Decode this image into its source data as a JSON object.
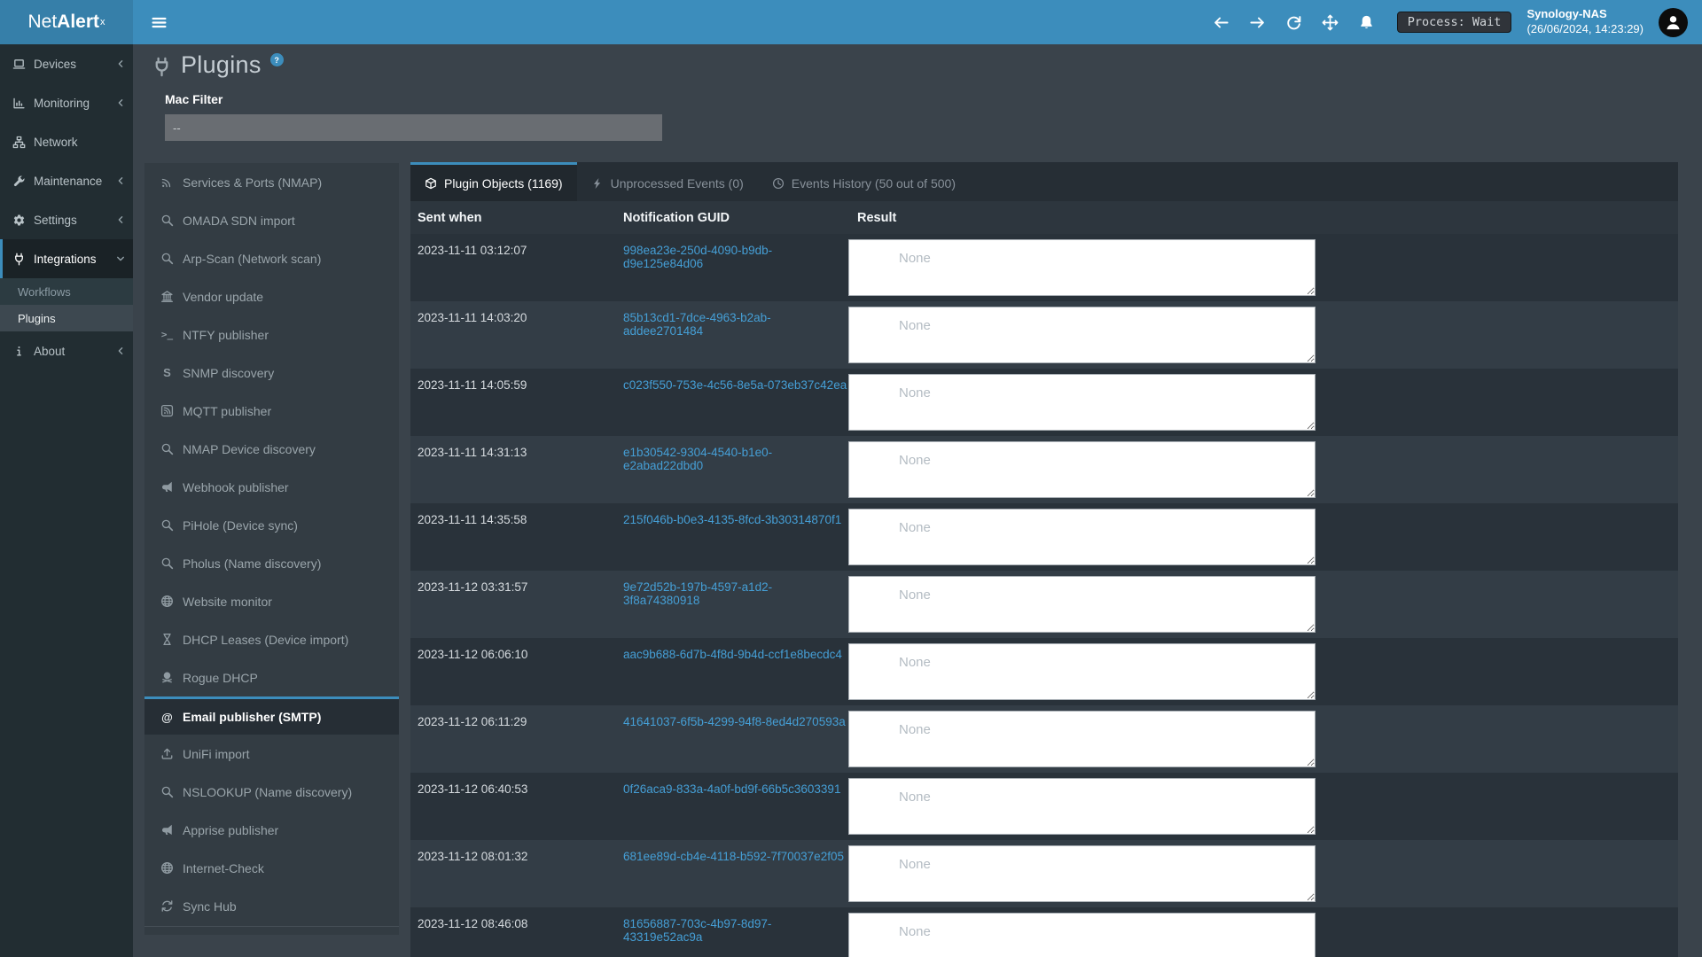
{
  "navbar": {
    "brand": {
      "prefix": "Net",
      "bold": "Alert",
      "sup": "x"
    },
    "nav_icons": [
      {
        "name": "back-icon"
      },
      {
        "name": "forward-icon"
      },
      {
        "name": "refresh-icon"
      },
      {
        "name": "move-icon"
      },
      {
        "name": "bell-icon"
      }
    ],
    "process_badge": "Process: Wait",
    "host": "Synology-NAS",
    "timestamp": "(26/06/2024, 14:23:29)"
  },
  "sidebar": {
    "items": [
      {
        "label": "Devices",
        "icon": "laptop-icon",
        "chevron": "left"
      },
      {
        "label": "Monitoring",
        "icon": "chart-icon",
        "chevron": "left"
      },
      {
        "label": "Network",
        "icon": "network-icon",
        "chevron": ""
      },
      {
        "label": "Maintenance",
        "icon": "wrench-icon",
        "chevron": "left"
      },
      {
        "label": "Settings",
        "icon": "gear-icon",
        "chevron": "left"
      },
      {
        "label": "Integrations",
        "icon": "plug-icon",
        "chevron": "down",
        "active": true,
        "children": [
          {
            "label": "Workflows",
            "selected": false
          },
          {
            "label": "Plugins",
            "selected": true
          }
        ]
      },
      {
        "label": "About",
        "icon": "info-icon",
        "chevron": "left"
      }
    ]
  },
  "page": {
    "title": "Plugins",
    "help": "?"
  },
  "filter": {
    "label": "Mac Filter",
    "value": "--"
  },
  "plugin_list": {
    "items": [
      {
        "label": "Services & Ports (NMAP)",
        "icon": "satellite-icon"
      },
      {
        "label": "OMADA SDN import",
        "icon": "search-icon"
      },
      {
        "label": "Arp-Scan (Network scan)",
        "icon": "search-icon"
      },
      {
        "label": "Vendor update",
        "icon": "landmark-icon"
      },
      {
        "label": "NTFY publisher",
        "icon": "terminal-icon"
      },
      {
        "label": "SNMP discovery",
        "icon": "snmp-icon"
      },
      {
        "label": "MQTT publisher",
        "icon": "rss-icon"
      },
      {
        "label": "NMAP Device discovery",
        "icon": "search-icon"
      },
      {
        "label": "Webhook publisher",
        "icon": "megaphone-icon"
      },
      {
        "label": "PiHole (Device sync)",
        "icon": "search-icon"
      },
      {
        "label": "Pholus (Name discovery)",
        "icon": "search-icon"
      },
      {
        "label": "Website monitor",
        "icon": "globe-icon"
      },
      {
        "label": "DHCP Leases (Device import)",
        "icon": "hourglass-icon"
      },
      {
        "label": "Rogue DHCP",
        "icon": "skull-icon"
      },
      {
        "label": "Email publisher (SMTP)",
        "icon": "email-icon",
        "selected": true
      },
      {
        "label": "UniFi import",
        "icon": "upload-icon"
      },
      {
        "label": "NSLOOKUP (Name discovery)",
        "icon": "search-icon"
      },
      {
        "label": "Apprise publisher",
        "icon": "megaphone-icon"
      },
      {
        "label": "Internet-Check",
        "icon": "globe-icon"
      },
      {
        "label": "Sync Hub",
        "icon": "sync-icon"
      }
    ]
  },
  "tabs": [
    {
      "label": "Plugin Objects (1169)",
      "icon": "cube-icon",
      "active": true
    },
    {
      "label": "Unprocessed Events (0)",
      "icon": "bolt-icon",
      "active": false
    },
    {
      "label": "Events History (50 out of 500)",
      "icon": "clock-icon",
      "active": false
    }
  ],
  "table": {
    "columns": [
      "Sent when",
      "Notification GUID",
      "Result"
    ],
    "result_placeholder": "None",
    "rows": [
      {
        "sent": "2023-11-11 03:12:07",
        "guid": "998ea23e-250d-4090-b9db-d9e125e84d06"
      },
      {
        "sent": "2023-11-11 14:03:20",
        "guid": "85b13cd1-7dce-4963-b2ab-addee2701484"
      },
      {
        "sent": "2023-11-11 14:05:59",
        "guid": "c023f550-753e-4c56-8e5a-073eb37c42ea"
      },
      {
        "sent": "2023-11-11 14:31:13",
        "guid": "e1b30542-9304-4540-b1e0-e2abad22dbd0"
      },
      {
        "sent": "2023-11-11 14:35:58",
        "guid": "215f046b-b0e3-4135-8fcd-3b30314870f1"
      },
      {
        "sent": "2023-11-12 03:31:57",
        "guid": "9e72d52b-197b-4597-a1d2-3f8a74380918"
      },
      {
        "sent": "2023-11-12 06:06:10",
        "guid": "aac9b688-6d7b-4f8d-9b4d-ccf1e8becdc4"
      },
      {
        "sent": "2023-11-12 06:11:29",
        "guid": "41641037-6f5b-4299-94f8-8ed4d270593a"
      },
      {
        "sent": "2023-11-12 06:40:53",
        "guid": "0f26aca9-833a-4a0f-bd9f-66b5c3603391"
      },
      {
        "sent": "2023-11-12 08:01:32",
        "guid": "681ee89d-cb4e-4118-b592-7f70037e2f05"
      },
      {
        "sent": "2023-11-12 08:46:08",
        "guid": "81656887-703c-4b97-8d97-43319e52ac9a"
      }
    ]
  },
  "colors": {
    "accent": "#3c8dbc",
    "brand_bg": "#367fa9",
    "sidebar_bg": "#222d32",
    "content_bg": "#3a434b",
    "panel_bg": "#333c43",
    "row_odd": "#29323a",
    "row_even": "#333d46",
    "guid_link": "#459fd6"
  }
}
